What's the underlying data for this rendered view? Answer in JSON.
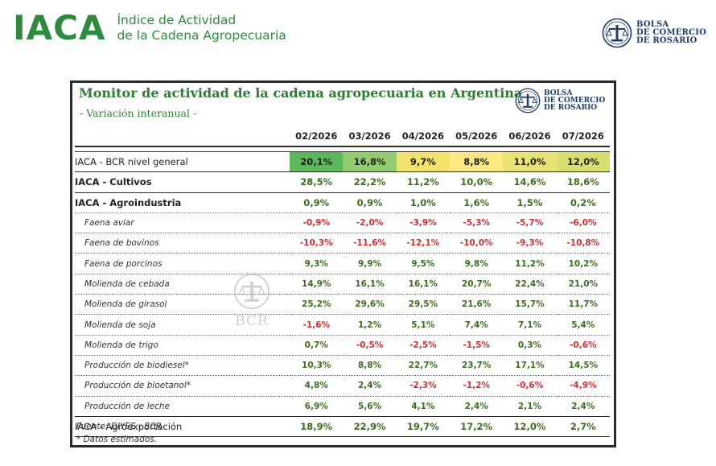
{
  "header": {
    "brand": "IACA",
    "brand_sub_line1": "Índice de Actividad",
    "brand_sub_line2": "de la Cadena Agropecuaria",
    "bcr_line1": "BOLSA",
    "bcr_line2": "DE COMERCIO",
    "bcr_line3": "DE ROSARIO",
    "brand_color": "#2e8b3c",
    "logo_icon": "bcr-seal-icon"
  },
  "panel": {
    "title": "Monitor de actividad de la cadena agropecuaria en Argentina",
    "subtitle": "- Variación interanual -",
    "watermark": "BCR",
    "columns": [
      "02/2026",
      "03/2026",
      "04/2026",
      "05/2026",
      "06/2026",
      "07/2026"
    ],
    "rows": [
      {
        "label": "IACA - BCR nivel general",
        "kind": "general",
        "values": [
          "20,1%",
          "16,8%",
          "9,7%",
          "8,8%",
          "11,0%",
          "12,0%"
        ],
        "bg": [
          "#5db85c",
          "#93cc70",
          "#f3e36c",
          "#fde882",
          "#e9e373",
          "#d9df6e"
        ]
      },
      {
        "label": "IACA - Cultivos",
        "kind": "main",
        "values": [
          "28,5%",
          "22,2%",
          "11,2%",
          "10,0%",
          "14,6%",
          "18,6%"
        ]
      },
      {
        "label": "IACA - Agroindustria",
        "kind": "main",
        "values": [
          "0,9%",
          "0,9%",
          "1,0%",
          "1,6%",
          "1,5%",
          "0,2%"
        ]
      },
      {
        "label": "Faena aviar",
        "kind": "sub",
        "values": [
          "-0,9%",
          "-2,0%",
          "-3,9%",
          "-5,3%",
          "-5,7%",
          "-6,0%"
        ]
      },
      {
        "label": "Faena de bovinos",
        "kind": "sub",
        "values": [
          "-10,3%",
          "-11,6%",
          "-12,1%",
          "-10,0%",
          "-9,3%",
          "-10,8%"
        ]
      },
      {
        "label": "Faena de porcinos",
        "kind": "sub",
        "values": [
          "9,3%",
          "9,9%",
          "9,5%",
          "9,8%",
          "11,2%",
          "10,2%"
        ]
      },
      {
        "label": "Molienda de cebada",
        "kind": "sub",
        "values": [
          "14,9%",
          "16,1%",
          "16,1%",
          "20,7%",
          "22,4%",
          "21,0%"
        ]
      },
      {
        "label": "Molienda de girasol",
        "kind": "sub",
        "values": [
          "25,2%",
          "29,6%",
          "29,5%",
          "21,6%",
          "15,7%",
          "11,7%"
        ]
      },
      {
        "label": "Molienda de soja",
        "kind": "sub",
        "values": [
          "-1,6%",
          "1,2%",
          "5,1%",
          "7,4%",
          "7,1%",
          "5,4%"
        ]
      },
      {
        "label": "Molienda de trigo",
        "kind": "sub",
        "values": [
          "0,7%",
          "-0,5%",
          "-2,5%",
          "-1,5%",
          "0,3%",
          "-0,6%"
        ]
      },
      {
        "label": "Producción de biodiesel*",
        "kind": "sub",
        "values": [
          "10,3%",
          "8,8%",
          "22,7%",
          "23,7%",
          "17,1%",
          "14,5%"
        ]
      },
      {
        "label": "Producción de bioetanol*",
        "kind": "sub",
        "values": [
          "4,8%",
          "2,4%",
          "-2,3%",
          "-1,2%",
          "-0,6%",
          "-4,9%"
        ]
      },
      {
        "label": "Producción de leche",
        "kind": "sub",
        "values": [
          "6,9%",
          "5,6%",
          "4,1%",
          "2,4%",
          "2,1%",
          "2,4%"
        ]
      },
      {
        "label": "IACA - Agroexportación",
        "kind": "last",
        "values": [
          "18,9%",
          "22,9%",
          "19,7%",
          "17,2%",
          "12,0%",
          "2,7%"
        ]
      }
    ],
    "footnotes": [
      "Fuente: DIYEE - BCR",
      "* Datos estimados."
    ],
    "colors": {
      "positive": "#3c6e1e",
      "negative": "#d32f2f",
      "title": "#2e7d32"
    }
  }
}
